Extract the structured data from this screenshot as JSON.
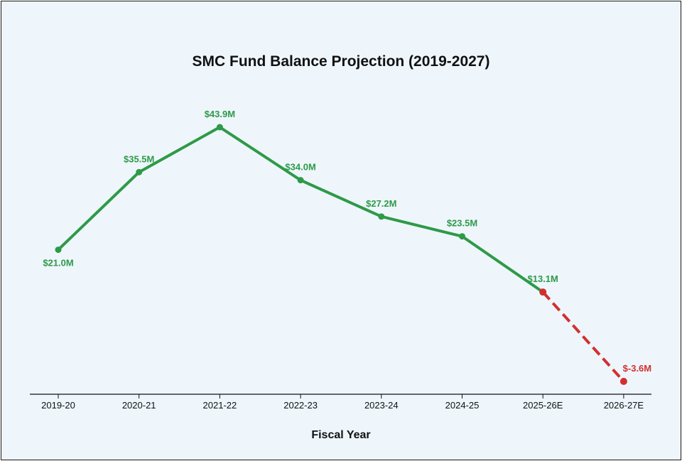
{
  "chart_data": {
    "type": "line",
    "title": "SMC Fund Balance Projection  (2019-2027)",
    "xlabel": "Fiscal Year",
    "ylabel": "",
    "categories": [
      "2019-20",
      "2020-21",
      "2021-22",
      "2022-23",
      "2023-24",
      "2024-25",
      "2025-26E",
      "2026-27E"
    ],
    "values": [
      21.0,
      35.5,
      43.9,
      34.0,
      27.2,
      23.5,
      13.1,
      -3.6
    ],
    "data_labels": [
      "$21.0M",
      "$35.5M",
      "$43.9M",
      "$34.0M",
      "$27.2M",
      "$23.5M",
      "$13.1M",
      "$-3.6M"
    ],
    "projected_from_index": 6,
    "ylim": [
      -6,
      52
    ],
    "y_axis_visible": false,
    "grid": false,
    "colors": {
      "actual": "#2e9a47",
      "projected": "#d32f2f",
      "background": "#eef6fc",
      "axis": "#111111"
    }
  }
}
